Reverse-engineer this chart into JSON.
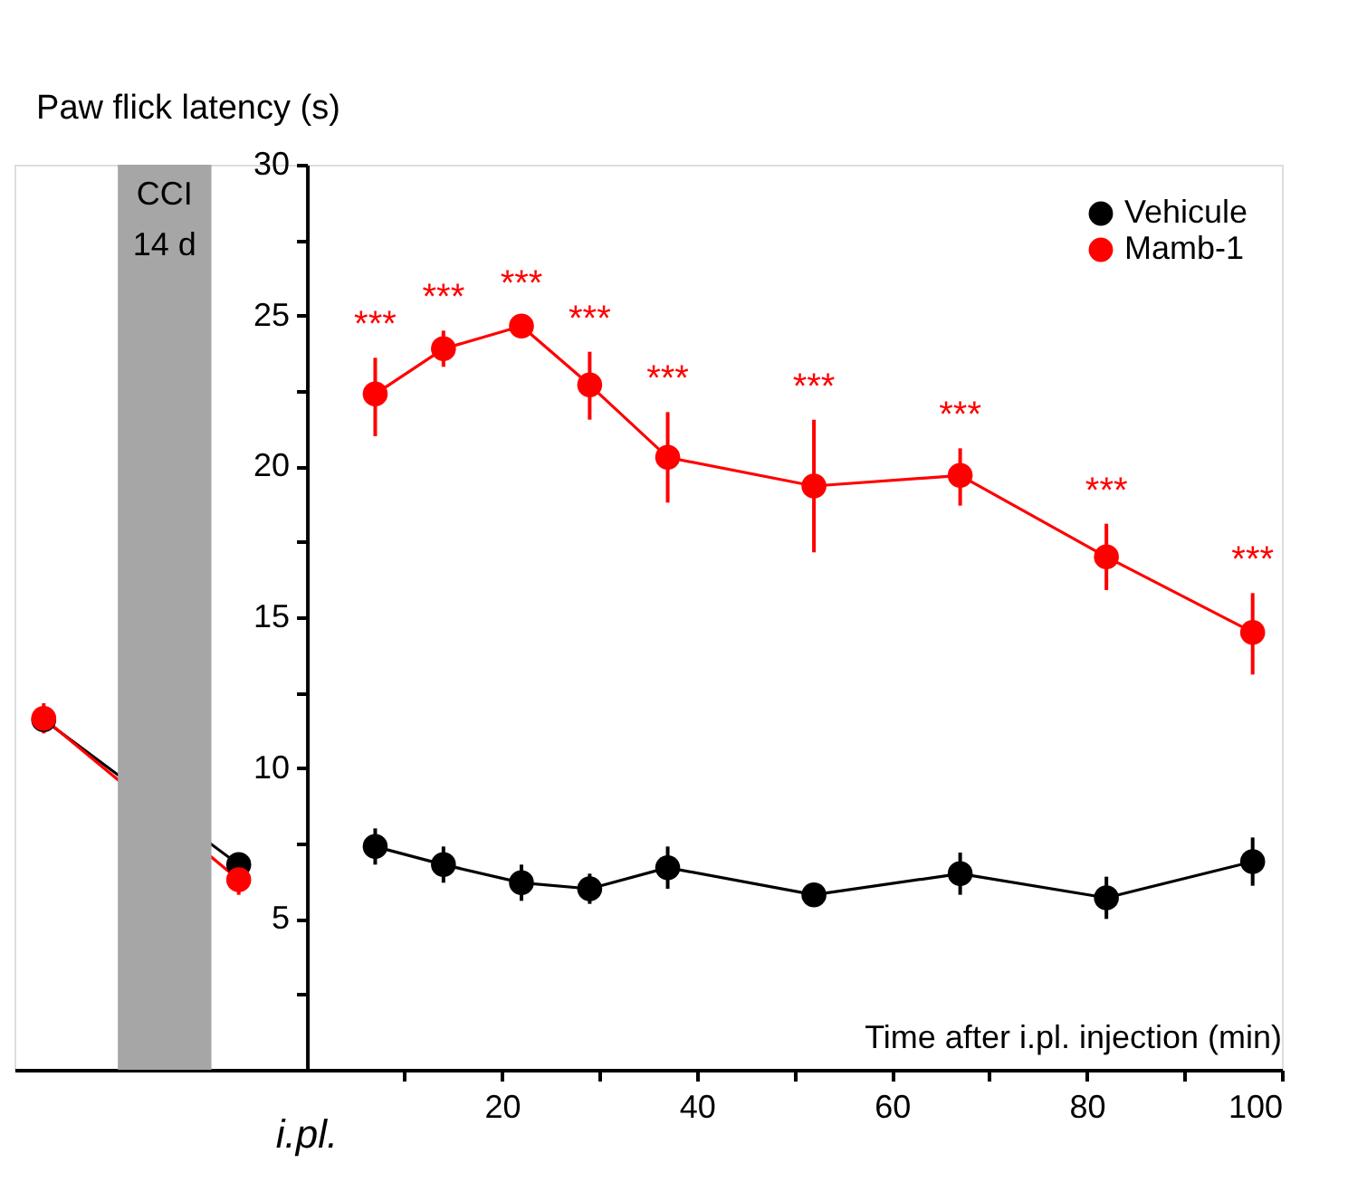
{
  "chart_data": {
    "type": "line",
    "ylabel": "Paw flick latency (s)",
    "xlabel": "Time after i.pl. injection (min)",
    "xlim": [
      -30,
      100
    ],
    "ylim": [
      0,
      30
    ],
    "xticks": [
      {
        "value": 10,
        "label": null
      },
      20,
      {
        "value": 30,
        "label": null
      },
      40,
      {
        "value": 50,
        "label": null
      },
      60,
      {
        "value": 70,
        "label": null
      },
      80,
      {
        "value": 90,
        "label": null
      },
      100
    ],
    "yticks": [
      {
        "value": 2.5,
        "label": null
      },
      5,
      {
        "value": 7.5,
        "label": null
      },
      10,
      {
        "value": 12.5,
        "label": null
      },
      15,
      {
        "value": 17.5,
        "label": null
      },
      20,
      {
        "value": 22.5,
        "label": null
      },
      25,
      {
        "value": 27.5,
        "label": null
      },
      30
    ],
    "x": [
      -27,
      -7,
      0,
      7,
      14,
      22,
      29,
      37,
      52,
      67,
      82,
      97
    ],
    "series": [
      {
        "name": "Vehicule",
        "color": "#000000",
        "values": [
          11.6,
          6.8,
          null,
          7.4,
          6.8,
          6.2,
          6.0,
          6.7,
          5.8,
          6.5,
          5.7,
          6.9
        ],
        "errors": [
          null,
          0.4,
          null,
          0.6,
          0.6,
          0.6,
          0.5,
          0.7,
          0.3,
          0.7,
          0.7,
          0.8
        ]
      },
      {
        "name": "Mamb-1",
        "color": "#ff0000",
        "values": [
          11.65,
          6.3,
          null,
          22.4,
          23.9,
          24.65,
          22.7,
          20.3,
          19.35,
          19.7,
          17.0,
          14.5
        ],
        "errors": [
          0.5,
          0.5,
          null,
          [
            21.0,
            23.6
          ],
          [
            23.3,
            24.5
          ],
          0.3,
          [
            21.55,
            23.8
          ],
          [
            18.8,
            21.8
          ],
          [
            17.15,
            21.55
          ],
          [
            18.7,
            20.6
          ],
          [
            15.9,
            18.1
          ],
          [
            13.1,
            15.8
          ]
        ]
      }
    ],
    "bands": [
      {
        "axis": "x",
        "from": -19.4,
        "to": -9.8,
        "label": "CCI",
        "color": "#a6a6a6"
      }
    ],
    "annotations": [
      "14 d",
      "***",
      "***",
      "***",
      "***",
      "***",
      "***",
      "***",
      "***",
      "***",
      "i.pl."
    ],
    "marker": "circle",
    "legend": "top right",
    "grid": false
  }
}
